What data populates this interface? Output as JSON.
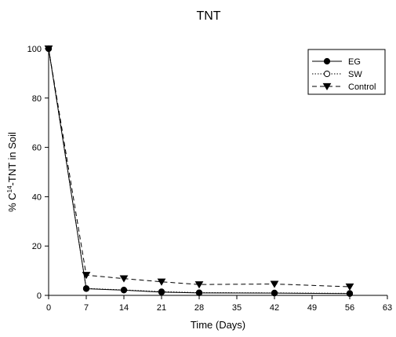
{
  "chart_data": {
    "type": "line",
    "title": "TNT",
    "xlabel": "Time (Days)",
    "ylabel_prefix": "% C",
    "ylabel_sup": "14",
    "ylabel_suffix": "-TNT in Soil",
    "xlim": [
      0,
      63
    ],
    "ylim": [
      0,
      100
    ],
    "xticks": [
      0,
      7,
      14,
      21,
      28,
      35,
      42,
      49,
      56,
      63
    ],
    "yticks": [
      0,
      20,
      40,
      60,
      80,
      100
    ],
    "grid": false,
    "legend_position": "top-right",
    "x": [
      0,
      7,
      14,
      21,
      28,
      42,
      56
    ],
    "series": [
      {
        "name": "EG",
        "marker": "filled-circle",
        "line": "solid",
        "color": "#000000",
        "values": [
          100,
          2.7,
          2.1,
          1.3,
          1.0,
          0.9,
          0.7
        ]
      },
      {
        "name": "SW",
        "marker": "open-circle",
        "line": "dotted",
        "color": "#000000",
        "values": [
          100,
          2.8,
          2.2,
          1.5,
          1.1,
          1.0,
          0.8
        ]
      },
      {
        "name": "Control",
        "marker": "filled-triangle-down",
        "line": "dashed",
        "color": "#000000",
        "values": [
          100,
          8.2,
          6.8,
          5.5,
          4.4,
          4.6,
          3.5
        ]
      }
    ]
  }
}
